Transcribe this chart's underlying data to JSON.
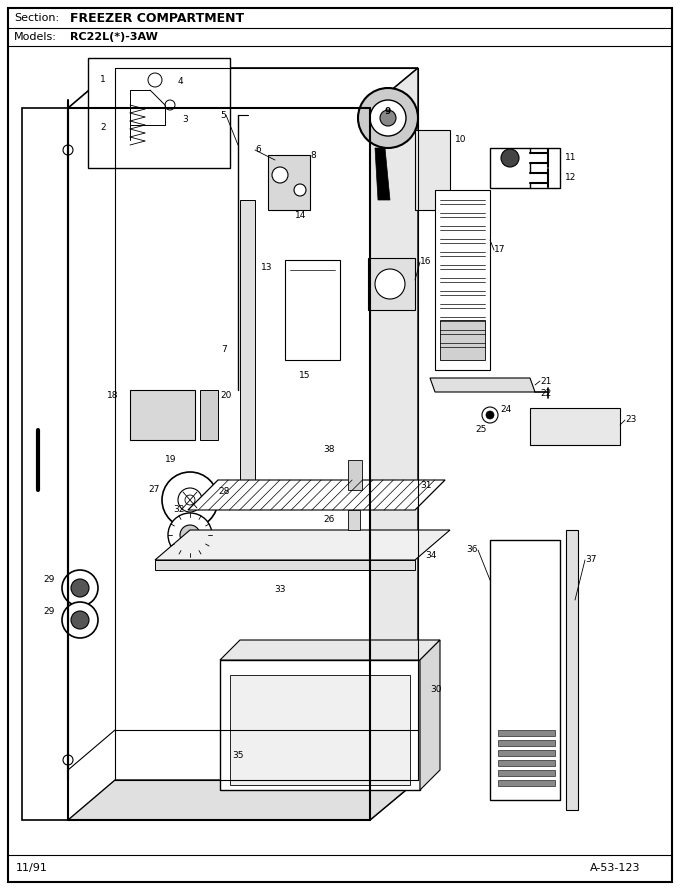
{
  "title_section": "Section:",
  "title_text": "FREEZER COMPARTMENT",
  "models_label": "Models:",
  "models_text": "RC22L(*)-3AW",
  "footer_left": "11/91",
  "footer_right": "A-53-123",
  "bg_color": "#ffffff",
  "figsize": [
    6.8,
    8.9
  ],
  "dpi": 100
}
